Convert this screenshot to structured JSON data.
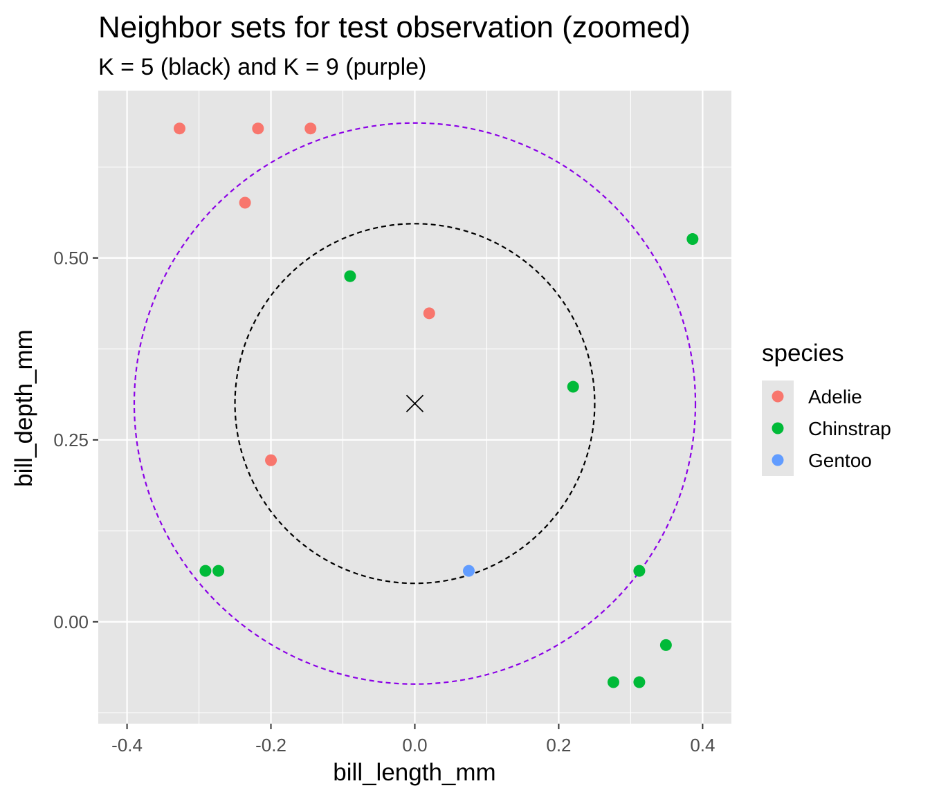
{
  "chart_data": {
    "type": "scatter",
    "title": "Neighbor sets for test observation (zoomed)",
    "subtitle": "K = 5 (black) and K = 9 (purple)",
    "xlabel": "bill_length_mm",
    "ylabel": "bill_depth_mm",
    "xlim": [
      -0.44,
      0.44
    ],
    "ylim": [
      -0.14,
      0.73
    ],
    "x_ticks": [
      -0.4,
      -0.2,
      0.0,
      0.2,
      0.4
    ],
    "x_tick_labels": [
      "-0.4",
      "-0.2",
      "0.0",
      "0.2",
      "0.4"
    ],
    "y_ticks": [
      0.0,
      0.25,
      0.5
    ],
    "y_tick_labels": [
      "0.00",
      "0.25",
      "0.50"
    ],
    "grid": true,
    "legend": {
      "title": "species",
      "position": "right",
      "entries": [
        {
          "label": "Adelie",
          "color": "#F8766D"
        },
        {
          "label": "Chinstrap",
          "color": "#00BA38"
        },
        {
          "label": "Gentoo",
          "color": "#619CFF"
        }
      ]
    },
    "test_point": {
      "x": 0.0,
      "y": 0.3,
      "marker": "x"
    },
    "circles": [
      {
        "cx": 0.0,
        "cy": 0.3,
        "r": 0.25,
        "color": "#000000",
        "style": "dashed"
      },
      {
        "cx": 0.0,
        "cy": 0.3,
        "r": 0.39,
        "color": "#8B00E6",
        "style": "dashed"
      }
    ],
    "series": [
      {
        "name": "Adelie",
        "color": "#F8766D",
        "points": [
          {
            "x": -0.327,
            "y": 0.678
          },
          {
            "x": -0.218,
            "y": 0.678
          },
          {
            "x": -0.145,
            "y": 0.678
          },
          {
            "x": -0.236,
            "y": 0.576
          },
          {
            "x": 0.02,
            "y": 0.424
          },
          {
            "x": -0.2,
            "y": 0.222
          }
        ]
      },
      {
        "name": "Chinstrap",
        "color": "#00BA38",
        "points": [
          {
            "x": 0.386,
            "y": 0.526
          },
          {
            "x": -0.09,
            "y": 0.475
          },
          {
            "x": 0.22,
            "y": 0.323
          },
          {
            "x": -0.291,
            "y": 0.07
          },
          {
            "x": -0.273,
            "y": 0.07
          },
          {
            "x": 0.312,
            "y": 0.07
          },
          {
            "x": 0.349,
            "y": -0.032
          },
          {
            "x": 0.276,
            "y": -0.083
          },
          {
            "x": 0.312,
            "y": -0.083
          }
        ]
      },
      {
        "name": "Gentoo",
        "color": "#619CFF",
        "points": [
          {
            "x": 0.075,
            "y": 0.07
          }
        ]
      }
    ]
  }
}
